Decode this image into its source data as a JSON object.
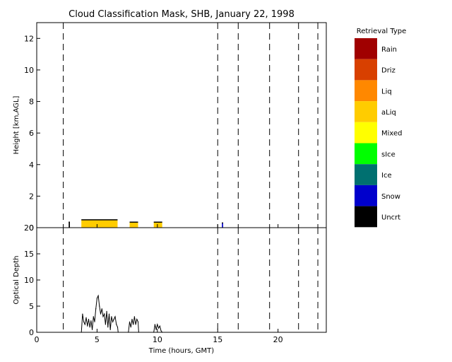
{
  "chart_data": [
    {
      "type": "area",
      "panel": "top",
      "title": "Cloud Classification Mask, SHB, January 22, 1998",
      "xlabel": "",
      "ylabel": "Height [km,AGL]",
      "xlim": [
        0,
        24
      ],
      "ylim": [
        0,
        13
      ],
      "yticks": [
        "0",
        "2",
        "4",
        "6",
        "8",
        "10",
        "12"
      ],
      "dashed_lines_x": [
        2.2,
        15.0,
        16.7,
        19.3,
        21.7,
        23.3
      ],
      "segments": [
        {
          "class": "aLiq",
          "x": [
            3.7,
            6.7
          ],
          "top_km": 0.5
        },
        {
          "class": "aLiq",
          "x": [
            7.7,
            8.4
          ],
          "top_km": 0.35
        },
        {
          "class": "aLiq",
          "x": [
            9.7,
            10.4
          ],
          "top_km": 0.35
        },
        {
          "class": "Uncrt",
          "x": [
            2.65,
            2.75
          ],
          "top_km": 0.35
        },
        {
          "class": "Snow",
          "x": [
            15.35,
            15.45
          ],
          "top_km": 0.3
        }
      ],
      "legend": {
        "title": "Retrieval Type",
        "placement": "right",
        "entries": [
          {
            "label": "Rain",
            "color": "#a00000"
          },
          {
            "label": "Driz",
            "color": "#d84000"
          },
          {
            "label": "Liq",
            "color": "#ff8800"
          },
          {
            "label": "aLiq",
            "color": "#ffcc00"
          },
          {
            "label": "Mixed",
            "color": "#ffff00"
          },
          {
            "label": "sIce",
            "color": "#00ff00"
          },
          {
            "label": "Ice",
            "color": "#007070"
          },
          {
            "label": "Snow",
            "color": "#0000cc"
          },
          {
            "label": "Uncrt",
            "color": "#000000"
          }
        ]
      }
    },
    {
      "type": "line",
      "panel": "bottom",
      "xlabel": "Time (hours, GMT)",
      "ylabel": "Optical Depth",
      "xlim": [
        0,
        24
      ],
      "ylim": [
        0,
        20
      ],
      "xticks": [
        "0",
        "5",
        "10",
        "15",
        "20"
      ],
      "yticks": [
        "0",
        "5",
        "10",
        "15",
        "20"
      ],
      "dashed_lines_x": [
        2.2,
        15.0,
        16.7,
        19.3,
        21.7,
        23.3
      ],
      "series": [
        {
          "x": [
            3.7,
            3.8,
            3.9,
            4.0,
            4.1,
            4.2,
            4.3,
            4.4,
            4.5,
            4.6,
            4.7,
            4.8,
            4.9,
            5.0,
            5.1,
            5.2,
            5.3,
            5.4,
            5.5,
            5.6,
            5.7,
            5.8,
            5.9,
            6.0,
            6.1,
            6.2,
            6.3,
            6.4,
            6.5,
            6.6,
            6.7,
            6.75,
            7.6,
            7.7,
            7.8,
            7.9,
            8.0,
            8.1,
            8.2,
            8.3,
            8.4,
            8.45,
            9.7,
            9.8,
            9.9,
            10.0,
            10.1,
            10.2,
            10.3,
            10.4
          ],
          "y": [
            0,
            3.5,
            2.0,
            1.5,
            2.8,
            1.2,
            2.5,
            1.0,
            2.2,
            0.5,
            3.0,
            2.0,
            4.5,
            6.5,
            7.0,
            5.0,
            3.5,
            4.5,
            3.0,
            3.5,
            1.5,
            4.0,
            1.0,
            3.5,
            0.5,
            3.0,
            2.0,
            2.5,
            3.0,
            1.5,
            1.0,
            0,
            0,
            2.0,
            1.0,
            2.5,
            1.5,
            3.0,
            1.5,
            2.5,
            2.0,
            0,
            0,
            1.5,
            0.5,
            1.5,
            0.8,
            1.2,
            0.3,
            0
          ]
        }
      ]
    }
  ]
}
